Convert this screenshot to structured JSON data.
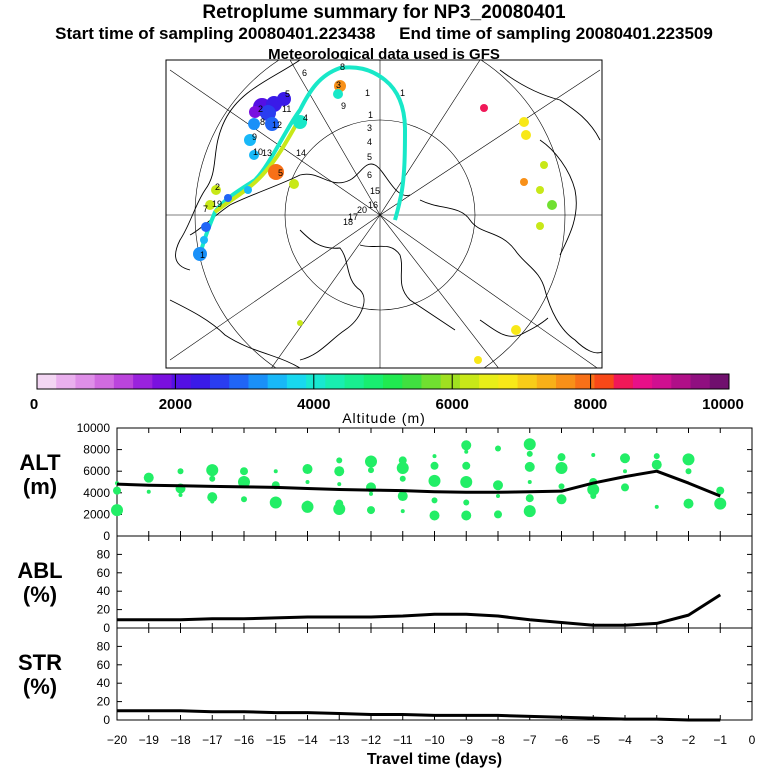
{
  "header": {
    "title": "Retroplume summary for NP3_20080401",
    "start_label": "Start time of sampling 20080401.223438",
    "end_label": "End time of sampling 20080401.223509",
    "met_label": "Meteorological data used is GFS"
  },
  "colorbar": {
    "ticks": [
      "0",
      "2000",
      "4000",
      "6000",
      "8000",
      "10000"
    ],
    "label": "Altitude (m)",
    "colors": [
      "#f3d6f3",
      "#eab0ee",
      "#df8fe8",
      "#d16be0",
      "#bb44dc",
      "#9a22dd",
      "#7a10df",
      "#5410e4",
      "#3a1ae8",
      "#2a3df0",
      "#2065f6",
      "#1a90f8",
      "#18b8f8",
      "#18d8ef",
      "#18e8d0",
      "#18eeb0",
      "#18ef90",
      "#18ee70",
      "#20ea50",
      "#40e040",
      "#70e030",
      "#a0e020",
      "#c8e818",
      "#e8ee18",
      "#f8e818",
      "#f8cc18",
      "#f8b018",
      "#f89018",
      "#f87018",
      "#f84818",
      "#f01858",
      "#e81088",
      "#d01090",
      "#b01088",
      "#901080",
      "#70106e"
    ]
  },
  "map": {
    "labels": [
      "8",
      "6",
      "5",
      "1",
      "3",
      "2",
      "1",
      "9",
      "1",
      "4",
      "5",
      "1",
      "2",
      "3",
      "4",
      "5",
      "6",
      "7",
      "8",
      "9",
      "10",
      "11",
      "12",
      "13",
      "14",
      "15",
      "16",
      "17",
      "18",
      "19",
      "20"
    ]
  },
  "chart_data": [
    {
      "type": "line",
      "panel": "ALT",
      "ylabel_lines": [
        "ALT",
        "(m)"
      ],
      "ylim": [
        0,
        10000
      ],
      "yticks": [
        0,
        2000,
        4000,
        6000,
        8000,
        10000
      ],
      "x": [
        -20,
        -19,
        -18,
        -17,
        -16,
        -15,
        -14,
        -13,
        -12,
        -11,
        -10,
        -9,
        -8,
        -7,
        -6,
        -5,
        -4,
        -3,
        -2,
        -1
      ],
      "values": [
        4800,
        4700,
        4650,
        4600,
        4550,
        4500,
        4400,
        4300,
        4250,
        4200,
        4100,
        4050,
        4050,
        4100,
        4150,
        4900,
        5500,
        6000,
        4900,
        3700
      ],
      "point_series": [
        {
          "x": -20,
          "y": [
            4900,
            4200,
            2400
          ]
        },
        {
          "x": -19,
          "y": [
            5400,
            4100
          ]
        },
        {
          "x": -18,
          "y": [
            6000,
            4400,
            3800
          ]
        },
        {
          "x": -17,
          "y": [
            6100,
            5300,
            3600,
            3200
          ]
        },
        {
          "x": -16,
          "y": [
            6000,
            5000,
            3400
          ]
        },
        {
          "x": -15,
          "y": [
            6000,
            4700,
            3100
          ]
        },
        {
          "x": -14,
          "y": [
            6200,
            5000,
            2900,
            2700
          ]
        },
        {
          "x": -13,
          "y": [
            7000,
            6000,
            4800,
            3000,
            2500
          ]
        },
        {
          "x": -12,
          "y": [
            6900,
            6100,
            4500,
            3900,
            2400
          ]
        },
        {
          "x": -11,
          "y": [
            7000,
            6300,
            5300,
            3700,
            2300
          ]
        },
        {
          "x": -10,
          "y": [
            7400,
            6500,
            5100,
            3300,
            1900
          ]
        },
        {
          "x": -9,
          "y": [
            8400,
            7800,
            6500,
            5000,
            3100,
            1900
          ]
        },
        {
          "x": -8,
          "y": [
            8100,
            4700,
            3700,
            2000
          ]
        },
        {
          "x": -7,
          "y": [
            8500,
            7600,
            6400,
            5000,
            3500,
            2300
          ]
        },
        {
          "x": -6,
          "y": [
            7300,
            6300,
            4600,
            3400
          ]
        },
        {
          "x": -5,
          "y": [
            7500,
            5000,
            4300,
            3700
          ]
        },
        {
          "x": -4,
          "y": [
            7200,
            6000,
            4500
          ]
        },
        {
          "x": -3,
          "y": [
            7400,
            6600,
            2700
          ]
        },
        {
          "x": -2,
          "y": [
            7100,
            6000,
            3000
          ]
        },
        {
          "x": -1,
          "y": [
            4200,
            3000
          ]
        }
      ]
    },
    {
      "type": "line",
      "panel": "ABL",
      "ylabel_lines": [
        "ABL",
        "(%)"
      ],
      "ylim": [
        0,
        100
      ],
      "yticks": [
        0,
        20,
        40,
        60,
        80
      ],
      "x": [
        -20,
        -19,
        -18,
        -17,
        -16,
        -15,
        -14,
        -13,
        -12,
        -11,
        -10,
        -9,
        -8,
        -7,
        -6,
        -5,
        -4,
        -3,
        -2,
        -1
      ],
      "values": [
        9,
        9,
        9,
        10,
        10,
        11,
        12,
        12,
        12,
        13,
        15,
        15,
        13,
        9,
        6,
        3,
        3,
        5,
        14,
        36
      ]
    },
    {
      "type": "line",
      "panel": "STR",
      "ylabel_lines": [
        "STR",
        "(%)"
      ],
      "ylim": [
        0,
        100
      ],
      "yticks": [
        0,
        20,
        40,
        60,
        80
      ],
      "x": [
        -20,
        -19,
        -18,
        -17,
        -16,
        -15,
        -14,
        -13,
        -12,
        -11,
        -10,
        -9,
        -8,
        -7,
        -6,
        -5,
        -4,
        -3,
        -2,
        -1
      ],
      "values": [
        10,
        10,
        10,
        9,
        9,
        8,
        8,
        7,
        6,
        6,
        5,
        5,
        5,
        4,
        3,
        2,
        1,
        1,
        0,
        0
      ],
      "xticks": [
        -20,
        -19,
        -18,
        -17,
        -16,
        -15,
        -14,
        -13,
        -12,
        -11,
        -10,
        -9,
        -8,
        -7,
        -6,
        -5,
        -4,
        -3,
        -2,
        -1,
        0
      ],
      "xlabel": "Travel time (days)"
    }
  ]
}
